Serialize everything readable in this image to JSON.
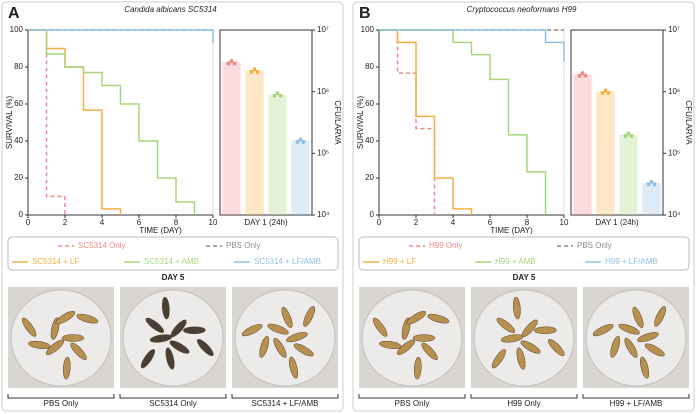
{
  "chart_data": [
    {
      "type": "step",
      "title": "Candida albicans SC5314",
      "xlabel": "TIME (DAY)",
      "ylabel": "SURVIVAL (%)",
      "xlim": [
        0,
        10
      ],
      "xticks": [
        0,
        2,
        4,
        6,
        8,
        10
      ],
      "ylim": [
        0,
        100
      ],
      "yticks": [
        0,
        20,
        40,
        60,
        80,
        100
      ],
      "series": [
        {
          "name": "SC5314 Only",
          "color": "#f08a8a",
          "line_style": "dashed",
          "x": [
            0,
            1,
            2
          ],
          "values": [
            100,
            10,
            0
          ]
        },
        {
          "name": "PBS Only",
          "color": "#8c8c8c",
          "line_style": "dashed",
          "x": [
            0,
            10
          ],
          "values": [
            100,
            100
          ]
        },
        {
          "name": "SC5314 + LF",
          "color": "#f5b041",
          "line_style": "solid",
          "x": [
            0,
            1,
            2,
            3,
            4,
            5
          ],
          "values": [
            100,
            90,
            80,
            56.7,
            3.3,
            0
          ]
        },
        {
          "name": "SC5314 + AMB",
          "color": "#a5d67e",
          "line_style": "solid",
          "x": [
            0,
            1,
            2,
            3,
            4,
            5,
            6,
            7,
            8,
            9
          ],
          "values": [
            100,
            87,
            80,
            77,
            70,
            60,
            40,
            20,
            7,
            0
          ]
        },
        {
          "name": "SC5314 + LF/AMB",
          "color": "#8fc1e3",
          "line_style": "solid",
          "x": [
            0,
            10
          ],
          "values": [
            100,
            93
          ]
        }
      ]
    },
    {
      "type": "bar",
      "yscale": "log",
      "ylabel": "CFU/LARVA",
      "categories": [
        "DAY 1 (24h)"
      ],
      "ylim": [
        10000,
        10000000
      ],
      "yticks": [
        {
          "value": 10000,
          "label": "10⁴"
        },
        {
          "value": 100000,
          "label": "10⁵"
        },
        {
          "value": 1000000,
          "label": "10⁶"
        },
        {
          "value": 10000000,
          "label": "10⁷"
        }
      ],
      "series": [
        {
          "color": "#f08a8a",
          "values": [
            3000000
          ]
        },
        {
          "color": "#f5b041",
          "values": [
            2200000
          ]
        },
        {
          "color": "#a5d67e",
          "values": [
            900000
          ]
        },
        {
          "color": "#8fc1e3",
          "values": [
            160000
          ]
        }
      ]
    },
    {
      "type": "step",
      "title": "Cryptococcus neoformans H99",
      "xlabel": "TIME (DAY)",
      "ylabel": "SURVIVAL (%)",
      "xlim": [
        0,
        10
      ],
      "xticks": [
        0,
        2,
        4,
        6,
        8,
        10
      ],
      "ylim": [
        0,
        100
      ],
      "yticks": [
        0,
        20,
        40,
        60,
        80,
        100
      ],
      "series": [
        {
          "name": "H99 Only",
          "color": "#f08a8a",
          "line_style": "dashed",
          "x": [
            0,
            1,
            2,
            3
          ],
          "values": [
            100,
            76.7,
            46.7,
            0
          ]
        },
        {
          "name": "PBS Only",
          "color": "#8c8c8c",
          "line_style": "dashed",
          "x": [
            0,
            10
          ],
          "values": [
            100,
            100
          ]
        },
        {
          "name": "H99 + LF",
          "color": "#f5b041",
          "line_style": "solid",
          "x": [
            0,
            1,
            2,
            3,
            4,
            5
          ],
          "values": [
            100,
            93.3,
            53.3,
            20,
            3.3,
            0
          ]
        },
        {
          "name": "H99 + AMB",
          "color": "#a5d67e",
          "line_style": "solid",
          "x": [
            0,
            4,
            5,
            6,
            7,
            8,
            9
          ],
          "values": [
            100,
            93.3,
            86.7,
            73.3,
            43.3,
            23.3,
            0
          ]
        },
        {
          "name": "H99 + LF/AMB",
          "color": "#8fc1e3",
          "line_style": "solid",
          "x": [
            0,
            9,
            10
          ],
          "values": [
            100,
            93.3,
            83.3
          ]
        }
      ]
    },
    {
      "type": "bar",
      "yscale": "log",
      "ylabel": "CFU/LARVA",
      "categories": [
        "DAY 1 (24h)"
      ],
      "ylim": [
        10000,
        10000000
      ],
      "yticks": [
        {
          "value": 10000,
          "label": "10⁴"
        },
        {
          "value": 100000,
          "label": "10⁵"
        },
        {
          "value": 1000000,
          "label": "10⁶"
        },
        {
          "value": 10000000,
          "label": "10⁷"
        }
      ],
      "series": [
        {
          "color": "#f08a8a",
          "values": [
            1900000
          ]
        },
        {
          "color": "#f5b041",
          "values": [
            1000000
          ]
        },
        {
          "color": "#a5d67e",
          "values": [
            200000
          ]
        },
        {
          "color": "#8fc1e3",
          "values": [
            33000
          ]
        }
      ]
    }
  ],
  "panels": [
    {
      "label": "A",
      "photo_title": "DAY 5",
      "photo_captions": [
        "PBS Only",
        "SC5314 Only",
        "SC5314 + LF/AMB"
      ]
    },
    {
      "label": "B",
      "photo_title": "DAY 5",
      "photo_captions": [
        "PBS Only",
        "H99 Only",
        "H99 + LF/AMB"
      ]
    }
  ]
}
